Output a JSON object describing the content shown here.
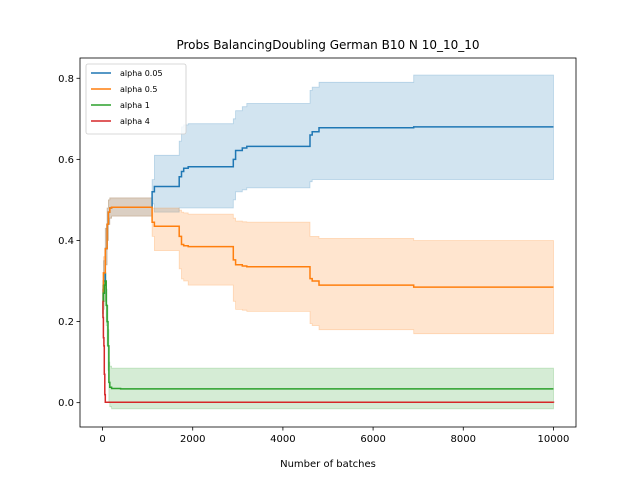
{
  "chart_data": {
    "type": "line",
    "title": "Probs BalancingDoubling German B10 N 10_10_10",
    "xlabel": "Number of batches",
    "ylabel": "",
    "xlim": [
      -500,
      10500
    ],
    "ylim": [
      -0.06,
      0.85
    ],
    "xticks": [
      0,
      2000,
      4000,
      6000,
      8000,
      10000
    ],
    "yticks": [
      0.0,
      0.2,
      0.4,
      0.6,
      0.8
    ],
    "xtick_labels": [
      "0",
      "2000",
      "4000",
      "6000",
      "8000",
      "10000"
    ],
    "ytick_labels": [
      "0.0",
      "0.2",
      "0.4",
      "0.6",
      "0.8"
    ],
    "legend_position": "upper-left",
    "grid": false,
    "series": [
      {
        "name": "alpha 0.05",
        "color": "#1f77b4",
        "x": [
          0,
          20,
          60,
          100,
          130,
          160,
          200,
          1100,
          1150,
          1650,
          1700,
          1750,
          1800,
          1900,
          2900,
          2950,
          3100,
          3200,
          4600,
          4650,
          4800,
          4850,
          6850,
          6900,
          10000
        ],
        "y": [
          0.25,
          0.3,
          0.38,
          0.44,
          0.47,
          0.48,
          0.482,
          0.52,
          0.533,
          0.533,
          0.557,
          0.57,
          0.578,
          0.582,
          0.6,
          0.622,
          0.628,
          0.632,
          0.66,
          0.668,
          0.678,
          0.678,
          0.678,
          0.68,
          0.68
        ],
        "upper": [
          0.28,
          0.35,
          0.43,
          0.48,
          0.5,
          0.505,
          0.505,
          0.55,
          0.61,
          0.61,
          0.645,
          0.68,
          0.685,
          0.688,
          0.7,
          0.72,
          0.73,
          0.738,
          0.77,
          0.778,
          0.79,
          0.79,
          0.79,
          0.808,
          0.808
        ],
        "lower": [
          0.22,
          0.27,
          0.34,
          0.4,
          0.44,
          0.455,
          0.46,
          0.49,
          0.47,
          0.47,
          0.48,
          0.48,
          0.48,
          0.48,
          0.5,
          0.52,
          0.525,
          0.53,
          0.545,
          0.55,
          0.55,
          0.55,
          0.55,
          0.55,
          0.55
        ]
      },
      {
        "name": "alpha 0.5",
        "color": "#ff7f0e",
        "x": [
          0,
          20,
          60,
          100,
          130,
          160,
          200,
          1100,
          1150,
          1650,
          1700,
          1750,
          1800,
          1900,
          2900,
          2950,
          3100,
          3200,
          4600,
          4650,
          4800,
          4850,
          6850,
          6900,
          10000
        ],
        "y": [
          0.25,
          0.32,
          0.38,
          0.44,
          0.47,
          0.48,
          0.482,
          0.445,
          0.435,
          0.435,
          0.41,
          0.39,
          0.387,
          0.385,
          0.352,
          0.34,
          0.337,
          0.335,
          0.306,
          0.3,
          0.29,
          0.29,
          0.29,
          0.285,
          0.285
        ],
        "upper": [
          0.28,
          0.36,
          0.43,
          0.48,
          0.5,
          0.505,
          0.505,
          0.48,
          0.48,
          0.48,
          0.475,
          0.47,
          0.468,
          0.465,
          0.455,
          0.448,
          0.446,
          0.445,
          0.41,
          0.41,
          0.405,
          0.405,
          0.405,
          0.4,
          0.4
        ],
        "lower": [
          0.22,
          0.28,
          0.34,
          0.4,
          0.44,
          0.455,
          0.46,
          0.41,
          0.375,
          0.375,
          0.33,
          0.305,
          0.3,
          0.29,
          0.25,
          0.23,
          0.228,
          0.225,
          0.195,
          0.19,
          0.18,
          0.18,
          0.18,
          0.17,
          0.17
        ]
      },
      {
        "name": "alpha 1",
        "color": "#2ca02c",
        "x": [
          0,
          20,
          40,
          60,
          80,
          100,
          120,
          140,
          160,
          200,
          400,
          800,
          10000
        ],
        "y": [
          0.25,
          0.27,
          0.29,
          0.3,
          0.24,
          0.2,
          0.14,
          0.05,
          0.038,
          0.035,
          0.034,
          0.034,
          0.034
        ],
        "upper": [
          0.29,
          0.31,
          0.32,
          0.32,
          0.28,
          0.24,
          0.18,
          0.1,
          0.09,
          0.085,
          0.085,
          0.085,
          0.085
        ],
        "lower": [
          0.21,
          0.23,
          0.25,
          0.27,
          0.19,
          0.14,
          0.08,
          0.0,
          -0.01,
          -0.015,
          -0.015,
          -0.015,
          -0.015
        ]
      },
      {
        "name": "alpha 4",
        "color": "#d62728",
        "x": [
          0,
          10,
          20,
          30,
          40,
          50,
          60,
          10000
        ],
        "y": [
          0.25,
          0.21,
          0.16,
          0.14,
          0.07,
          0.02,
          0.001,
          0.0
        ],
        "upper": [
          0.25,
          0.21,
          0.16,
          0.14,
          0.07,
          0.02,
          0.001,
          0.0
        ],
        "lower": [
          0.25,
          0.21,
          0.16,
          0.14,
          0.07,
          0.02,
          0.001,
          0.0
        ]
      }
    ]
  }
}
